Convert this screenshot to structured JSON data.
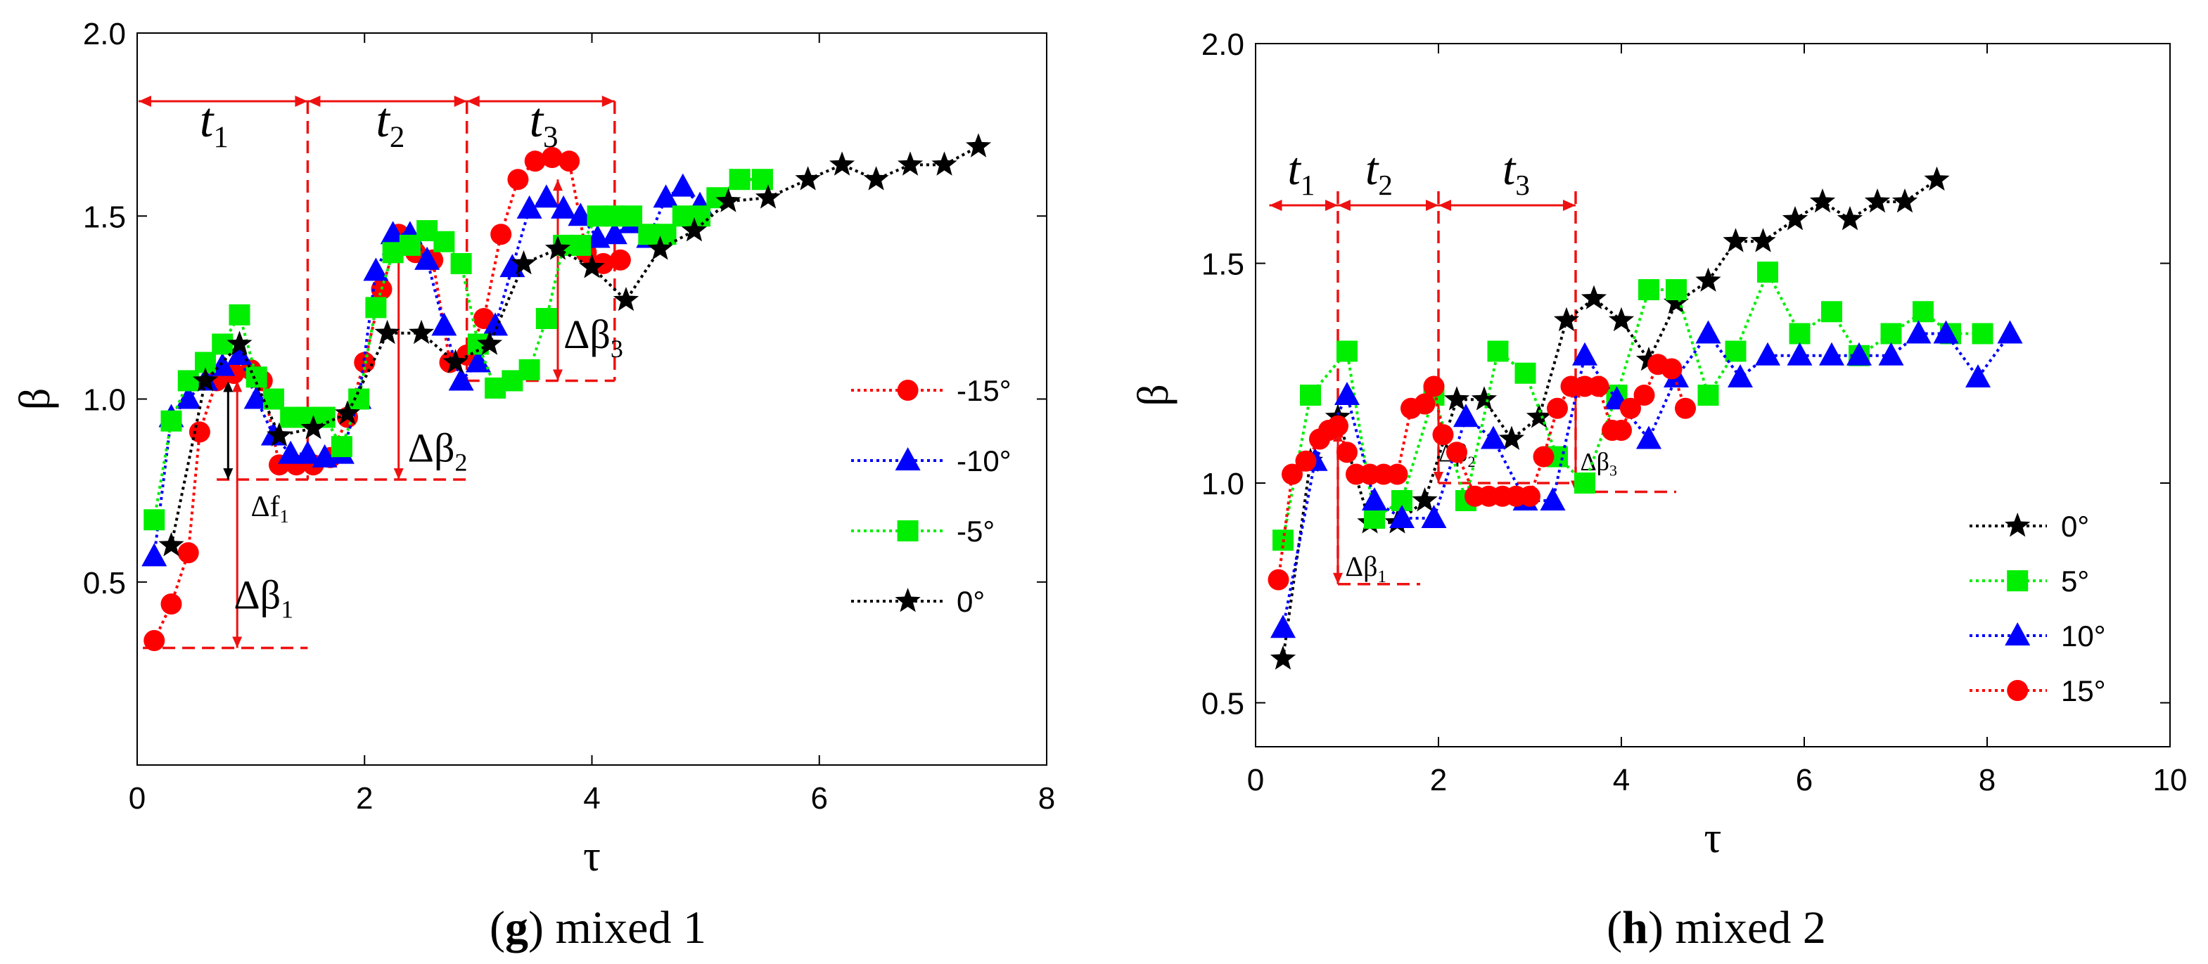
{
  "chart_data": [
    {
      "type": "line",
      "xlabel": "τ",
      "ylabel": "β",
      "xlim": [
        0,
        8
      ],
      "ylim": [
        0,
        2.0
      ],
      "xticks": [
        0,
        2,
        4,
        6,
        8
      ],
      "yticks": [
        0.5,
        1.0,
        1.5,
        2.0
      ],
      "ytick_labels": [
        "0.5",
        "1.0",
        "1.5",
        "2.0"
      ],
      "legend_position": "right",
      "series": [
        {
          "name": "-15°",
          "color": "#ff0000",
          "marker": "circle",
          "x": [
            0.15,
            0.3,
            0.45,
            0.55,
            0.7,
            0.85,
            1.0,
            1.1,
            1.25,
            1.4,
            1.55,
            1.7,
            1.85,
            2.0,
            2.15,
            2.3,
            2.45,
            2.6,
            2.75,
            2.9,
            3.05,
            3.2,
            3.35,
            3.5,
            3.65,
            3.8,
            3.95,
            4.1,
            4.25
          ],
          "y": [
            0.34,
            0.44,
            0.58,
            0.91,
            1.05,
            1.07,
            1.08,
            1.05,
            0.82,
            0.82,
            0.82,
            0.84,
            0.95,
            1.1,
            1.3,
            1.45,
            1.4,
            1.38,
            1.1,
            1.12,
            1.22,
            1.45,
            1.6,
            1.65,
            1.66,
            1.65,
            1.4,
            1.37,
            1.38
          ]
        },
        {
          "name": "-10°",
          "color": "#0000ff",
          "marker": "triangle",
          "x": [
            0.15,
            0.3,
            0.45,
            0.6,
            0.75,
            0.9,
            1.05,
            1.2,
            1.35,
            1.5,
            1.65,
            1.8,
            1.95,
            2.1,
            2.25,
            2.4,
            2.55,
            2.7,
            2.85,
            3.0,
            3.15,
            3.3,
            3.45,
            3.6,
            3.75,
            3.9,
            4.05,
            4.2,
            4.35,
            4.5,
            4.65,
            4.8,
            4.95
          ],
          "y": [
            0.57,
            0.95,
            1.0,
            1.05,
            1.09,
            1.12,
            1.0,
            0.9,
            0.85,
            0.85,
            0.84,
            0.85,
            1.0,
            1.35,
            1.45,
            1.45,
            1.38,
            1.2,
            1.05,
            1.1,
            1.2,
            1.36,
            1.52,
            1.55,
            1.52,
            1.5,
            1.44,
            1.45,
            1.48,
            1.44,
            1.55,
            1.58,
            1.53
          ]
        },
        {
          "name": "-5°",
          "color": "#00ee00",
          "marker": "square",
          "x": [
            0.15,
            0.3,
            0.45,
            0.6,
            0.75,
            0.9,
            1.05,
            1.2,
            1.35,
            1.5,
            1.65,
            1.8,
            1.95,
            2.1,
            2.25,
            2.4,
            2.55,
            2.7,
            2.85,
            3.0,
            3.15,
            3.3,
            3.45,
            3.6,
            3.75,
            3.9,
            4.05,
            4.2,
            4.35,
            4.5,
            4.65,
            4.8,
            4.95,
            5.1,
            5.3,
            5.5
          ],
          "y": [
            0.67,
            0.94,
            1.05,
            1.1,
            1.15,
            1.23,
            1.06,
            1.0,
            0.95,
            0.95,
            0.95,
            0.87,
            1.0,
            1.25,
            1.4,
            1.42,
            1.46,
            1.43,
            1.37,
            1.15,
            1.03,
            1.05,
            1.08,
            1.22,
            1.42,
            1.42,
            1.5,
            1.5,
            1.5,
            1.45,
            1.45,
            1.5,
            1.5,
            1.55,
            1.6,
            1.6
          ]
        },
        {
          "name": "0°",
          "color": "#000000",
          "marker": "star",
          "x": [
            0.3,
            0.6,
            0.9,
            1.25,
            1.55,
            1.85,
            2.2,
            2.5,
            2.8,
            3.1,
            3.4,
            3.7,
            4.0,
            4.3,
            4.6,
            4.9,
            5.2,
            5.55,
            5.9,
            6.2,
            6.5,
            6.8,
            7.1,
            7.4
          ],
          "y": [
            0.6,
            1.05,
            1.15,
            0.9,
            0.92,
            0.96,
            1.18,
            1.18,
            1.1,
            1.15,
            1.37,
            1.41,
            1.36,
            1.27,
            1.41,
            1.46,
            1.54,
            1.55,
            1.6,
            1.64,
            1.6,
            1.64,
            1.64,
            1.69
          ]
        }
      ],
      "annotations": {
        "t_labels": [
          "t",
          "t",
          "t"
        ],
        "t_subscripts": [
          "1",
          "2",
          "3"
        ],
        "delta_labels": [
          "Δβ",
          "Δβ",
          "Δβ",
          "Δf"
        ],
        "delta_subscripts": [
          "1",
          "2",
          "3",
          "1"
        ]
      }
    },
    {
      "type": "line",
      "xlabel": "τ",
      "ylabel": "β",
      "xlim": [
        0,
        10
      ],
      "ylim": [
        0.4,
        2.0
      ],
      "xticks": [
        0,
        2,
        4,
        6,
        8,
        10
      ],
      "yticks": [
        0.5,
        1.0,
        1.5,
        2.0
      ],
      "ytick_labels": [
        "0.5",
        "1.0",
        "1.5",
        "2.0"
      ],
      "legend_position": "bottom-right",
      "series": [
        {
          "name": "0°",
          "color": "#000000",
          "marker": "star",
          "x": [
            0.3,
            0.6,
            0.9,
            1.25,
            1.55,
            1.85,
            2.2,
            2.5,
            2.8,
            3.1,
            3.4,
            3.7,
            4.0,
            4.3,
            4.6,
            4.95,
            5.25,
            5.55,
            5.9,
            6.2,
            6.5,
            6.8,
            7.1,
            7.45
          ],
          "y": [
            0.6,
            1.05,
            1.15,
            0.91,
            0.91,
            0.96,
            1.19,
            1.19,
            1.1,
            1.15,
            1.37,
            1.42,
            1.37,
            1.28,
            1.41,
            1.46,
            1.55,
            1.55,
            1.6,
            1.64,
            1.6,
            1.64,
            1.64,
            1.69
          ]
        },
        {
          "name": "5°",
          "color": "#00ee00",
          "marker": "square",
          "x": [
            0.3,
            0.6,
            1.0,
            1.3,
            1.6,
            1.95,
            2.3,
            2.65,
            2.95,
            3.3,
            3.6,
            3.95,
            4.3,
            4.6,
            4.95,
            5.25,
            5.6,
            5.95,
            6.3,
            6.6,
            6.95,
            7.3,
            7.6,
            7.95
          ],
          "y": [
            0.87,
            1.2,
            1.3,
            0.92,
            0.96,
            1.2,
            0.96,
            1.3,
            1.25,
            1.06,
            1.0,
            1.2,
            1.44,
            1.44,
            1.2,
            1.3,
            1.48,
            1.34,
            1.39,
            1.29,
            1.34,
            1.39,
            1.34,
            1.34
          ]
        },
        {
          "name": "10°",
          "color": "#0000ff",
          "marker": "triangle",
          "x": [
            0.3,
            0.65,
            1.0,
            1.3,
            1.6,
            1.95,
            2.3,
            2.6,
            2.95,
            3.25,
            3.6,
            3.95,
            4.3,
            4.6,
            4.95,
            5.3,
            5.6,
            5.95,
            6.3,
            6.6,
            6.95,
            7.25,
            7.55,
            7.9,
            8.25
          ],
          "y": [
            0.67,
            1.05,
            1.2,
            0.96,
            0.92,
            0.92,
            1.15,
            1.1,
            0.96,
            0.96,
            1.29,
            1.19,
            1.1,
            1.24,
            1.34,
            1.24,
            1.29,
            1.29,
            1.29,
            1.29,
            1.29,
            1.34,
            1.34,
            1.24,
            1.34
          ]
        },
        {
          "name": "15°",
          "color": "#ff0000",
          "marker": "circle",
          "x": [
            0.25,
            0.4,
            0.55,
            0.7,
            0.8,
            0.9,
            1.0,
            1.1,
            1.25,
            1.4,
            1.55,
            1.7,
            1.85,
            1.95,
            2.05,
            2.2,
            2.4,
            2.55,
            2.7,
            2.85,
            3.0,
            3.15,
            3.3,
            3.45,
            3.6,
            3.75,
            3.9,
            4.0,
            4.1,
            4.25,
            4.4,
            4.55,
            4.7
          ],
          "y": [
            0.78,
            1.02,
            1.05,
            1.1,
            1.12,
            1.13,
            1.07,
            1.02,
            1.02,
            1.02,
            1.02,
            1.17,
            1.18,
            1.22,
            1.11,
            1.07,
            0.97,
            0.97,
            0.97,
            0.97,
            0.97,
            1.06,
            1.17,
            1.22,
            1.22,
            1.22,
            1.12,
            1.12,
            1.17,
            1.2,
            1.27,
            1.26,
            1.17
          ]
        }
      ],
      "annotations": {
        "t_labels": [
          "t",
          "t",
          "t"
        ],
        "t_subscripts": [
          "1",
          "2",
          "3"
        ],
        "delta_labels": [
          "Δβ",
          "Δβ",
          "Δβ"
        ],
        "delta_subscripts": [
          "1",
          "2",
          "3"
        ]
      }
    }
  ],
  "captions": [
    {
      "letter": "g",
      "text": " mixed 1"
    },
    {
      "letter": "h",
      "text": " mixed 2"
    }
  ]
}
